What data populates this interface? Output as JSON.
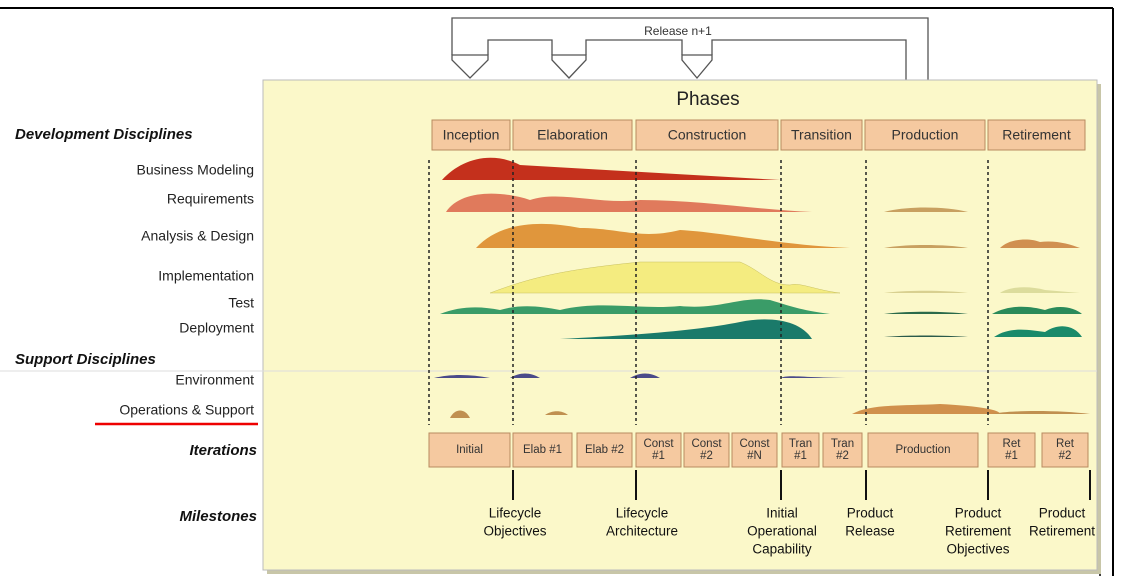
{
  "release_label": "Release n+1",
  "phases": {
    "title": "Phases",
    "items": [
      "Inception",
      "Elaboration",
      "Construction",
      "Transition",
      "Production",
      "Retirement"
    ]
  },
  "development_disciplines": {
    "heading": "Development Disciplines",
    "items": [
      "Business Modeling",
      "Requirements",
      "Analysis & Design",
      "Implementation",
      "Test",
      "Deployment"
    ]
  },
  "support_disciplines": {
    "heading": "Support Disciplines",
    "items": [
      "Environment",
      "Operations & Support"
    ]
  },
  "iterations": {
    "heading": "Iterations",
    "items": [
      {
        "lines": [
          "Initial"
        ]
      },
      {
        "lines": [
          "Elab #1"
        ]
      },
      {
        "lines": [
          "Elab #2"
        ]
      },
      {
        "lines": [
          "Const",
          "#1"
        ]
      },
      {
        "lines": [
          "Const",
          "#2"
        ]
      },
      {
        "lines": [
          "Const",
          "#N"
        ]
      },
      {
        "lines": [
          "Tran",
          "#1"
        ]
      },
      {
        "lines": [
          "Tran",
          "#2"
        ]
      },
      {
        "lines": [
          "Production"
        ]
      },
      {
        "lines": [
          "Ret",
          "#1"
        ]
      },
      {
        "lines": [
          "Ret",
          "#2"
        ]
      }
    ]
  },
  "milestones": {
    "heading": "Milestones",
    "items": [
      {
        "lines": [
          "Lifecycle",
          "Objectives"
        ]
      },
      {
        "lines": [
          "Lifecycle",
          "Architecture"
        ]
      },
      {
        "lines": [
          "Initial",
          "Operational",
          "Capability"
        ]
      },
      {
        "lines": [
          "Product",
          "Release"
        ]
      },
      {
        "lines": [
          "Product",
          "Retirement",
          "Objectives"
        ]
      },
      {
        "lines": [
          "Product",
          "Retirement"
        ]
      }
    ]
  }
}
